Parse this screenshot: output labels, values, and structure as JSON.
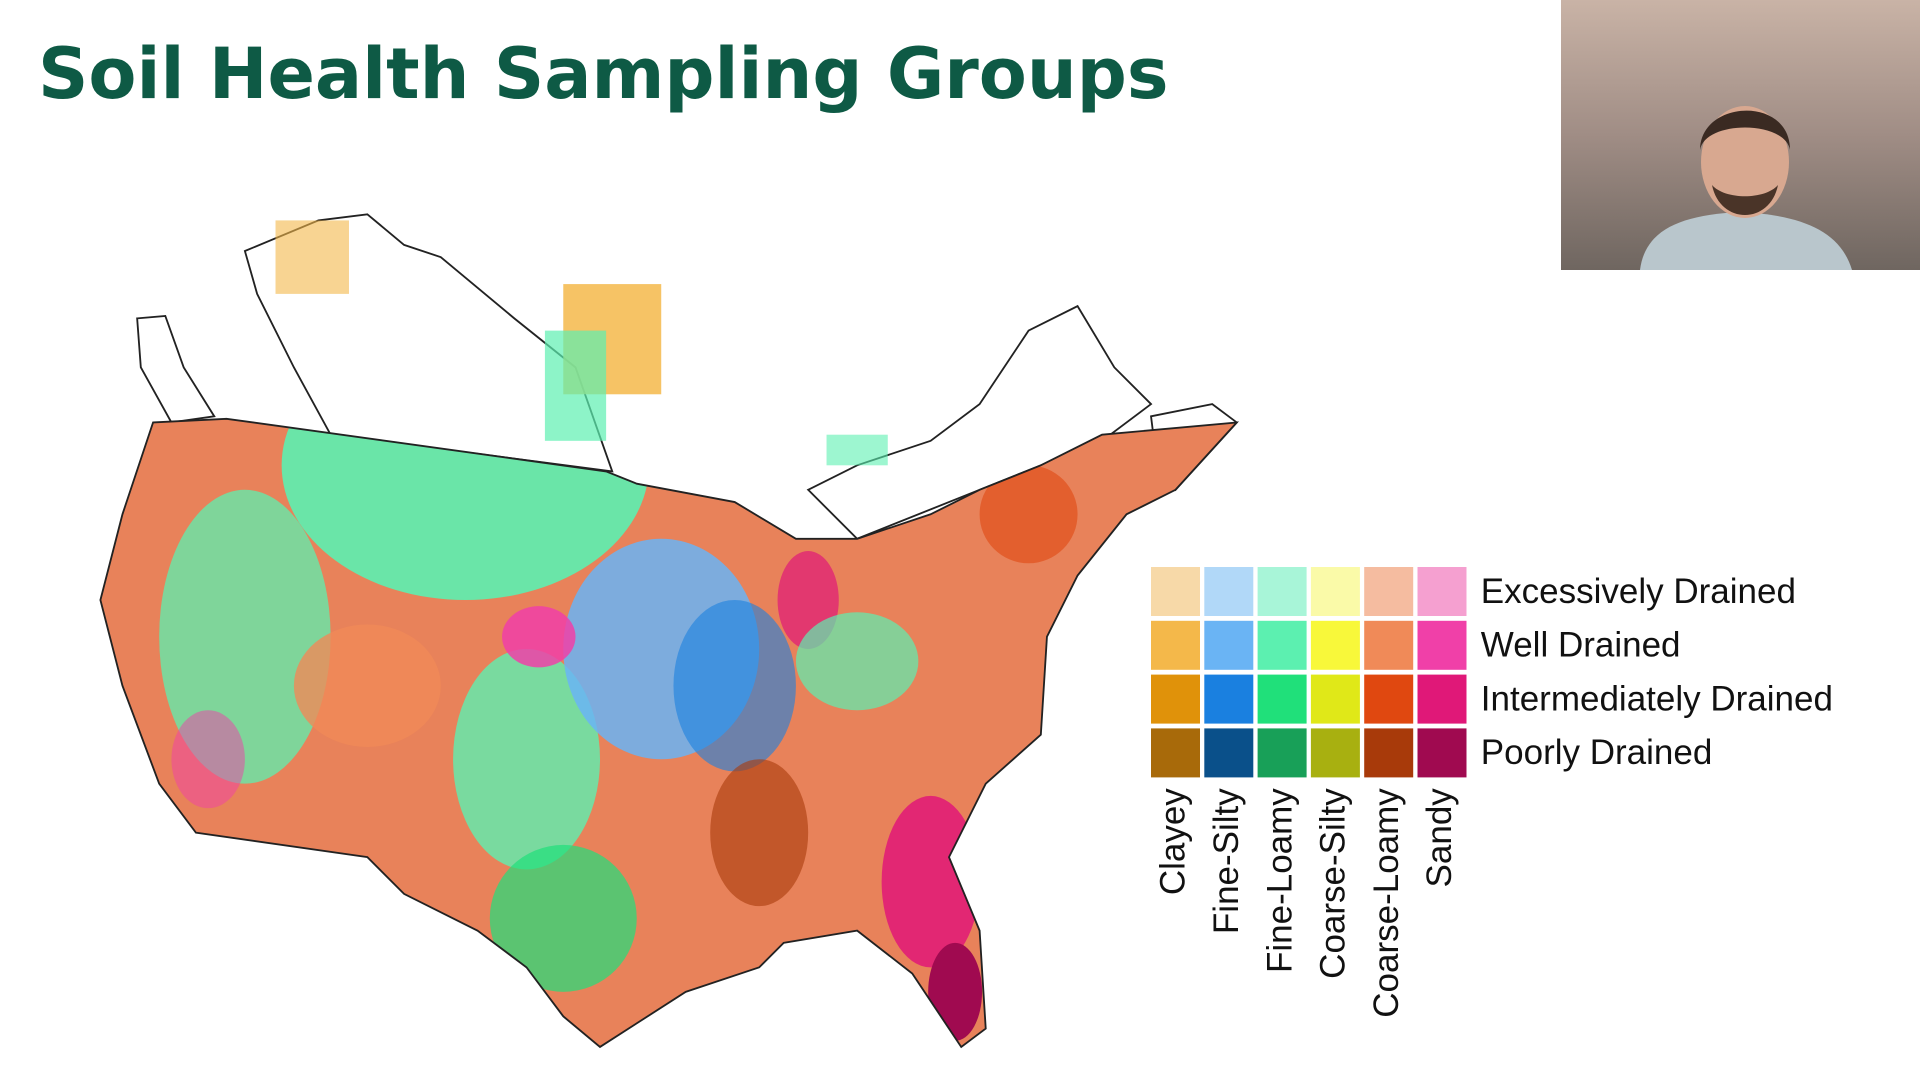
{
  "title": "Soil Health Sampling Groups",
  "legend": {
    "drainage_classes": [
      "Excessively Drained",
      "Well Drained",
      "Intermediately Drained",
      "Poorly Drained"
    ],
    "texture_groups": [
      "Clayey",
      "Fine-Silty",
      "Fine-Loamy",
      "Coarse-Silty",
      "Coarse-Loamy",
      "Sandy"
    ],
    "colors": [
      [
        "#f7d9a8",
        "#b1d8f8",
        "#a8f5d8",
        "#fafaa8",
        "#f5bca0",
        "#f5a0d0"
      ],
      [
        "#f4b84a",
        "#6ab4f4",
        "#5cf0b0",
        "#f8f83a",
        "#f08a58",
        "#f040a8"
      ],
      [
        "#e0920a",
        "#1a80e0",
        "#20e07a",
        "#e0e818",
        "#e04810",
        "#e01878"
      ],
      [
        "#a86a0a",
        "#0a508a",
        "#18a058",
        "#a8b010",
        "#a83a0a",
        "#a00a50"
      ]
    ]
  }
}
